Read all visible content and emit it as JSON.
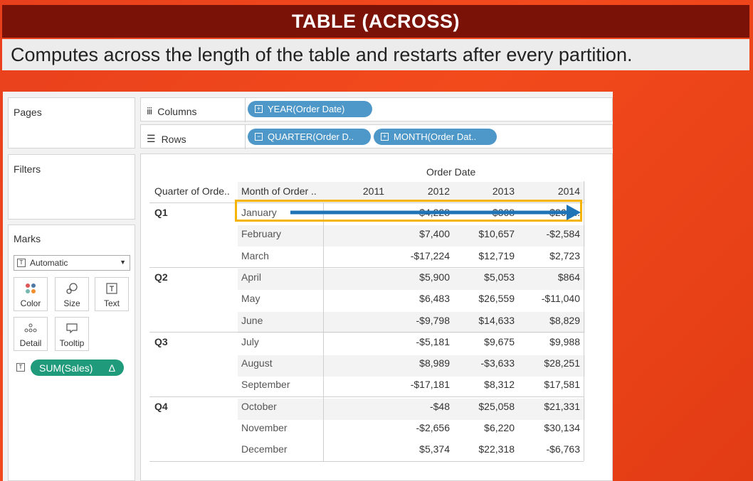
{
  "slide": {
    "title": "TABLE (ACROSS)",
    "subtitle": "Computes across the length of the table and restarts after every partition."
  },
  "pages_card": {
    "title": "Pages"
  },
  "filters_card": {
    "title": "Filters"
  },
  "marks_card": {
    "title": "Marks",
    "mark_type": "Automatic",
    "buttons": [
      "Color",
      "Size",
      "Text",
      "Detail",
      "Tooltip"
    ],
    "field_pill": "SUM(Sales)",
    "delta_symbol": "Δ"
  },
  "shelves": {
    "columns_label": "Columns",
    "rows_label": "Rows",
    "columns_pills": [
      "YEAR(Order Date)"
    ],
    "rows_pills": [
      "QUARTER(Order D..",
      "MONTH(Order Dat.."
    ]
  },
  "table": {
    "header_group": "Order Date",
    "row_header_1": "Quarter of Orde..",
    "row_header_2": "Month of Order ..",
    "years": [
      "2011",
      "2012",
      "2013",
      "2014"
    ],
    "quarters": [
      "Q1",
      "Q2",
      "Q3",
      "Q4"
    ],
    "months": [
      "January",
      "February",
      "March",
      "April",
      "May",
      "June",
      "July",
      "August",
      "September",
      "October",
      "November",
      "December"
    ],
    "values_2012": [
      "$4,228",
      "$7,400",
      "-$17,224",
      "$5,900",
      "$6,483",
      "-$9,798",
      "-$5,181",
      "$8,989",
      "-$17,181",
      "-$48",
      "-$2,656",
      "$5,374"
    ],
    "values_2013": [
      "$368",
      "$10,657",
      "$12,719",
      "$5,053",
      "$26,559",
      "$14,633",
      "$9,675",
      "-$3,633",
      "$8,312",
      "$25,058",
      "$6,220",
      "$22,318"
    ],
    "values_2014": [
      "$26,1..",
      "-$2,584",
      "$2,723",
      "$864",
      "-$11,040",
      "$8,829",
      "$9,988",
      "$28,251",
      "$17,581",
      "$21,331",
      "$30,134",
      "-$6,763"
    ]
  },
  "colors": {
    "title_bg": "#7a1208",
    "slide_bg": "#f04a1c",
    "pill_blue": "#4e97c9",
    "pill_green": "#1f9a7a",
    "highlight_box": "#f4b400",
    "arrow": "#1f74b7"
  }
}
